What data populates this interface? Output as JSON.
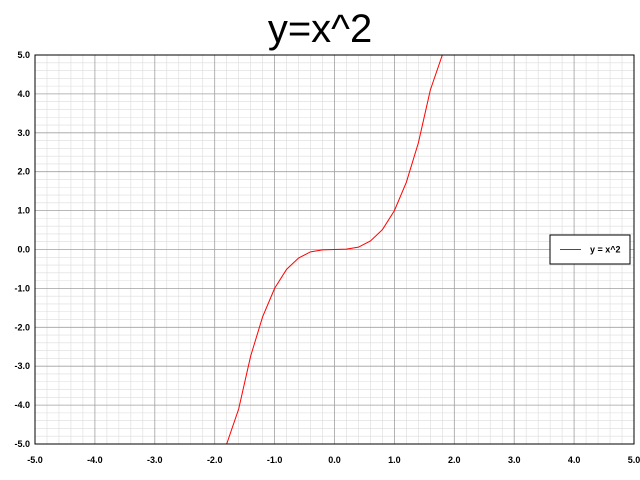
{
  "chart_data": {
    "type": "line",
    "title": "y=x^2",
    "xlabel": "",
    "ylabel": "",
    "xlim": [
      -5.0,
      5.0
    ],
    "ylim": [
      -5.0,
      5.0
    ],
    "grid": true,
    "minor_grid": true,
    "legend_position": "right",
    "x_ticks": [
      "-5.0",
      "-4.0",
      "-3.0",
      "-2.0",
      "-1.0",
      "0.0",
      "1.0",
      "2.0",
      "3.0",
      "4.0",
      "5.0"
    ],
    "y_ticks": [
      "5.0",
      "4.0",
      "3.0",
      "2.0",
      "1.0",
      "0.0",
      "-1.0",
      "-2.0",
      "-3.0",
      "-4.0",
      "-5.0"
    ],
    "series": [
      {
        "name": "y = x^2",
        "color": "#ff0000",
        "x": [
          -5.0,
          -1.8,
          -1.6,
          -1.4,
          -1.2,
          -1.0,
          -0.8,
          -0.6,
          -0.4,
          -0.2,
          0.0,
          0.2,
          0.4,
          0.6,
          0.8,
          1.0,
          1.2,
          1.4,
          1.6,
          1.8,
          5.0
        ],
        "y": [
          -5.0,
          -5.0,
          -4.1,
          -2.74,
          -1.73,
          -1.0,
          -0.51,
          -0.22,
          -0.06,
          -0.01,
          0.0,
          0.01,
          0.06,
          0.22,
          0.51,
          1.0,
          1.73,
          2.74,
          4.1,
          5.0,
          5.0
        ]
      }
    ]
  }
}
